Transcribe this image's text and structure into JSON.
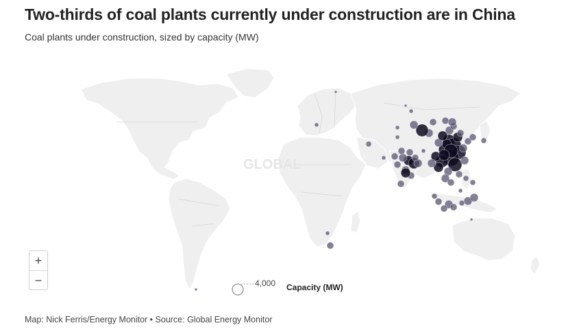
{
  "header": {
    "title": "Two-thirds of coal plants currently under construction are in China",
    "subtitle": "Coal plants under construction, sized by capacity (MW)"
  },
  "map": {
    "land_color": "#efefef",
    "border_color": "#ffffff",
    "dot_color": "#0d0a1f",
    "dot_light_color": "#5a5671"
  },
  "zoom": {
    "in_label": "+",
    "out_label": "−"
  },
  "legend": {
    "value": "4,000",
    "title": "Capacity (MW)"
  },
  "footer": {
    "source": "Map: Nick Ferris/Energy Monitor • Source: Global Energy Monitor"
  }
}
